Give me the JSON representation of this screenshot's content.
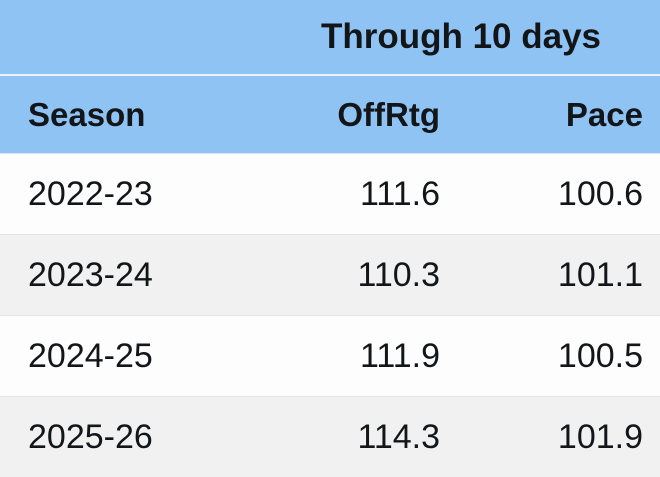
{
  "chart_data": {
    "type": "table",
    "title": "Through 10 days",
    "columns": [
      "Season",
      "OffRtg",
      "Pace"
    ],
    "rows": [
      [
        "2022-23",
        "111.6",
        "100.6"
      ],
      [
        "2023-24",
        "110.3",
        "101.1"
      ],
      [
        "2024-25",
        "111.9",
        "100.5"
      ],
      [
        "2025-26",
        "114.3",
        "101.9"
      ]
    ],
    "layout_hints": {
      "title_spans_columns": [
        "OffRtg",
        "Pace"
      ],
      "season_alignment": "left",
      "numeric_alignment": "right",
      "row_striping": [
        "white",
        "gray",
        "white",
        "gray"
      ]
    }
  },
  "colors": {
    "header_blue": "#8fc3f4",
    "row_white": "#fdfdfe",
    "row_gray": "#f1f1f2",
    "text": "#131619"
  }
}
